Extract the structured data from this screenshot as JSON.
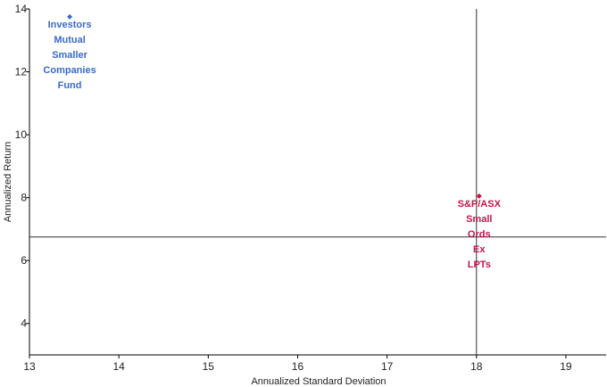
{
  "chart_data": {
    "type": "scatter",
    "xlabel": "Annualized Standard Deviation",
    "ylabel": "Annualized Return",
    "xlim": [
      13,
      19.45
    ],
    "ylim": [
      3,
      14
    ],
    "x_ticks": [
      "13",
      "14",
      "15",
      "16",
      "17",
      "18",
      "19"
    ],
    "y_ticks": [
      "4",
      "6",
      "8",
      "10",
      "12",
      "14"
    ],
    "reference_lines": {
      "x": 18.0,
      "y": 6.75
    },
    "grid": false,
    "points": [
      {
        "x": 13.45,
        "y": 13.75,
        "label_lines": [
          "Investors",
          "Mutual",
          "Smaller",
          "Companies",
          "Fund"
        ],
        "color": "#3a6bc4"
      },
      {
        "x": 18.03,
        "y": 8.05,
        "label_lines": [
          "S&P/ASX",
          "Small",
          "Ords",
          "Ex",
          "LPTs"
        ],
        "color": "#c0174a"
      }
    ]
  }
}
